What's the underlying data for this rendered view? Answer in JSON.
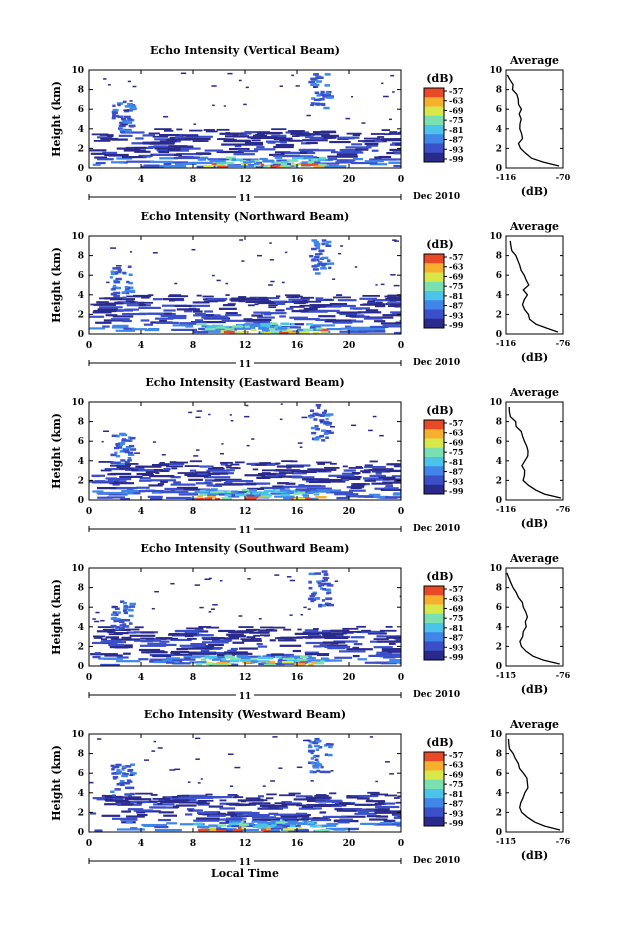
{
  "figure": {
    "xlabel": "Local Time",
    "date_label": "Dec 2010",
    "day_label": "11",
    "colorbar_unit": "(dB)",
    "colorbar_ticks": [
      "-57",
      "-63",
      "-69",
      "-75",
      "-81",
      "-87",
      "-93",
      "-99"
    ]
  },
  "chart_data": [
    {
      "type": "heatmap",
      "title": "Echo Intensity (Vertical Beam)",
      "ylabel": "Height (km)",
      "xticks": [
        "0",
        "4",
        "8",
        "12",
        "16",
        "20",
        "0"
      ],
      "yticks": [
        "0",
        "2",
        "4",
        "6",
        "8",
        "10"
      ],
      "xlim": [
        0,
        24
      ],
      "ylim": [
        0,
        10
      ],
      "zrange_db": [
        -99,
        -57
      ],
      "avg": {
        "title": "Average",
        "xlabel": "(dB)",
        "xticks": [
          "-116",
          "-70"
        ],
        "xlim": [
          -116,
          -70
        ],
        "yticks": [
          "0",
          "2",
          "4",
          "6",
          "8",
          "10"
        ],
        "heights": [
          0.2,
          0.6,
          1.0,
          1.5,
          2.0,
          2.5,
          3.0,
          3.5,
          4.0,
          4.5,
          5.0,
          5.5,
          6.0,
          6.5,
          7.0,
          7.5,
          8.0,
          8.5,
          9.0,
          9.5
        ],
        "values": [
          -74,
          -86,
          -95,
          -101,
          -104,
          -105,
          -103,
          -104,
          -105,
          -104,
          -103,
          -105,
          -104,
          -105,
          -106,
          -108,
          -110,
          -111,
          -113,
          -114
        ]
      }
    },
    {
      "type": "heatmap",
      "title": "Echo Intensity (Northward Beam)",
      "ylabel": "Height (km)",
      "xticks": [
        "0",
        "4",
        "8",
        "12",
        "16",
        "20",
        "0"
      ],
      "yticks": [
        "0",
        "2",
        "4",
        "6",
        "8",
        "10"
      ],
      "xlim": [
        0,
        24
      ],
      "ylim": [
        0,
        10
      ],
      "zrange_db": [
        -99,
        -57
      ],
      "avg": {
        "title": "Average",
        "xlabel": "(dB)",
        "xticks": [
          "-116",
          "-76"
        ],
        "xlim": [
          -116,
          -76
        ],
        "yticks": [
          "0",
          "2",
          "4",
          "6",
          "8",
          "10"
        ],
        "heights": [
          0.2,
          0.6,
          1.0,
          1.5,
          2.0,
          2.5,
          3.0,
          3.5,
          4.0,
          4.5,
          5.0,
          5.5,
          6.0,
          6.5,
          7.0,
          7.5,
          8.0,
          8.5,
          9.0,
          9.5
        ],
        "values": [
          -79,
          -88,
          -94,
          -99,
          -101,
          -103,
          -104,
          -103,
          -102,
          -103,
          -101,
          -102,
          -104,
          -106,
          -107,
          -108,
          -110,
          -112,
          -113,
          -114
        ]
      }
    },
    {
      "type": "heatmap",
      "title": "Echo Intensity (Eastward Beam)",
      "ylabel": "Height (km)",
      "xticks": [
        "0",
        "4",
        "8",
        "12",
        "16",
        "20",
        "0"
      ],
      "yticks": [
        "0",
        "2",
        "4",
        "6",
        "8",
        "10"
      ],
      "xlim": [
        0,
        24
      ],
      "ylim": [
        0,
        10
      ],
      "zrange_db": [
        -99,
        -57
      ],
      "avg": {
        "title": "Average",
        "xlabel": "(dB)",
        "xticks": [
          "-116",
          "-76"
        ],
        "xlim": [
          -116,
          -76
        ],
        "yticks": [
          "0",
          "2",
          "4",
          "6",
          "8",
          "10"
        ],
        "heights": [
          0.2,
          0.6,
          1.0,
          1.5,
          2.0,
          2.5,
          3.0,
          3.5,
          4.0,
          4.5,
          5.0,
          5.5,
          6.0,
          6.5,
          7.0,
          7.5,
          8.0,
          8.5,
          9.0,
          9.5
        ],
        "values": [
          -78,
          -88,
          -95,
          -101,
          -103,
          -104,
          -103,
          -104,
          -102,
          -101,
          -100,
          -101,
          -103,
          -105,
          -106,
          -108,
          -110,
          -112,
          -113,
          -114
        ]
      }
    },
    {
      "type": "heatmap",
      "title": "Echo Intensity (Southward Beam)",
      "ylabel": "Height (km)",
      "xticks": [
        "0",
        "4",
        "8",
        "12",
        "16",
        "20",
        "0"
      ],
      "yticks": [
        "0",
        "2",
        "4",
        "6",
        "8",
        "10"
      ],
      "xlim": [
        0,
        24
      ],
      "ylim": [
        0,
        10
      ],
      "zrange_db": [
        -99,
        -57
      ],
      "avg": {
        "title": "Average",
        "xlabel": "(dB)",
        "xticks": [
          "-115",
          "-76"
        ],
        "xlim": [
          -115,
          -76
        ],
        "yticks": [
          "0",
          "2",
          "4",
          "6",
          "8",
          "10"
        ],
        "heights": [
          0.2,
          0.6,
          1.0,
          1.5,
          2.0,
          2.5,
          3.0,
          3.5,
          4.0,
          4.5,
          5.0,
          5.5,
          6.0,
          6.5,
          7.0,
          7.5,
          8.0,
          8.5,
          9.0,
          9.5
        ],
        "values": [
          -78,
          -89,
          -96,
          -101,
          -104,
          -105,
          -104,
          -103,
          -102,
          -101,
          -100,
          -101,
          -103,
          -104,
          -106,
          -108,
          -110,
          -111,
          -113,
          -114
        ]
      }
    },
    {
      "type": "heatmap",
      "title": "Echo Intensity (Westward Beam)",
      "ylabel": "Height (km)",
      "xticks": [
        "0",
        "4",
        "8",
        "12",
        "16",
        "20",
        "0"
      ],
      "yticks": [
        "0",
        "2",
        "4",
        "6",
        "8",
        "10"
      ],
      "xlim": [
        0,
        24
      ],
      "ylim": [
        0,
        10
      ],
      "zrange_db": [
        -99,
        -57
      ],
      "avg": {
        "title": "Average",
        "xlabel": "(dB)",
        "xticks": [
          "-115",
          "-76"
        ],
        "xlim": [
          -115,
          -76
        ],
        "yticks": [
          "0",
          "2",
          "4",
          "6",
          "8",
          "10"
        ],
        "heights": [
          0.2,
          0.6,
          1.0,
          1.5,
          2.0,
          2.5,
          3.0,
          3.5,
          4.0,
          4.5,
          5.0,
          5.5,
          6.0,
          6.5,
          7.0,
          7.5,
          8.0,
          8.5,
          9.0,
          9.5
        ],
        "values": [
          -78,
          -89,
          -96,
          -101,
          -104,
          -105,
          -104,
          -103,
          -102,
          -101,
          -100,
          -101,
          -103,
          -105,
          -106,
          -108,
          -110,
          -112,
          -113,
          -114
        ]
      }
    }
  ],
  "colors": {
    "colormap": [
      "#2a2a8c",
      "#3a4fc8",
      "#3f86e8",
      "#4cc3e8",
      "#7be0b0",
      "#d8e84a",
      "#f7b02e",
      "#e84a28"
    ]
  }
}
